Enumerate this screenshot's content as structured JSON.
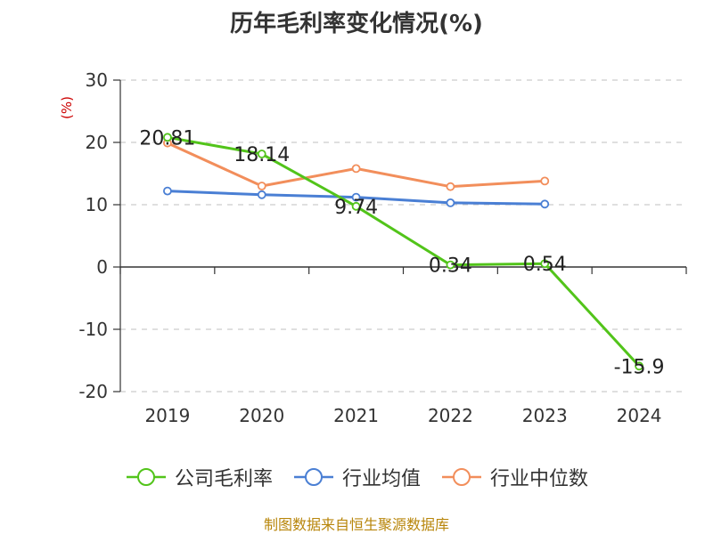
{
  "title": "历年毛利率变化情况(%)",
  "source": "制图数据来自恒生聚源数据库",
  "chart_data": {
    "type": "line",
    "title": "历年毛利率变化情况(%)",
    "ylabel": "(%)",
    "categories": [
      "2019",
      "2020",
      "2021",
      "2022",
      "2023",
      "2024"
    ],
    "ylim": [
      -20,
      30
    ],
    "yticks": [
      30,
      20,
      10,
      0,
      -10,
      -20
    ],
    "grid": true,
    "legend": "bottom",
    "series": [
      {
        "name": "公司毛利率",
        "color": "#52c41a",
        "values": [
          20.81,
          18.14,
          9.74,
          0.34,
          0.54,
          -15.9
        ],
        "labels": [
          "20.81",
          "18.14",
          "9.74",
          "0.34",
          "0.54",
          "-15.9"
        ]
      },
      {
        "name": "行业均值",
        "color": "#4a7fd4",
        "values": [
          12.2,
          11.6,
          11.2,
          10.3,
          10.1,
          null
        ]
      },
      {
        "name": "行业中位数",
        "color": "#f28e5b",
        "values": [
          19.9,
          13.0,
          15.8,
          12.9,
          13.8,
          null
        ]
      }
    ]
  }
}
